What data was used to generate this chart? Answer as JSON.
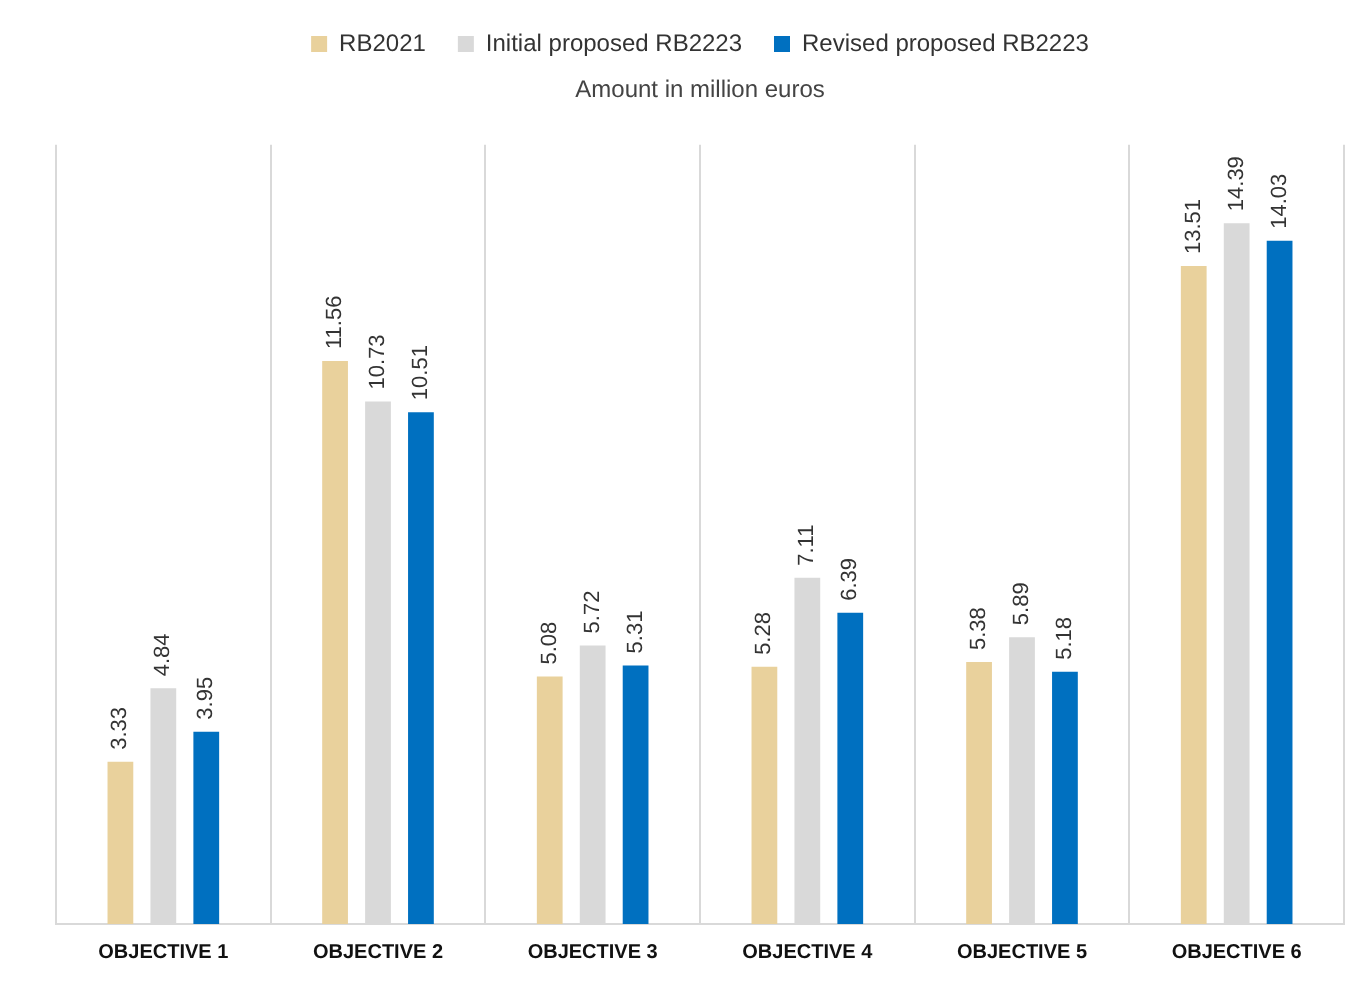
{
  "chart_data": {
    "type": "bar",
    "subtitle": "Amount in million euros",
    "categories": [
      "OBJECTIVE 1",
      "OBJECTIVE 2",
      "OBJECTIVE 3",
      "OBJECTIVE 4",
      "OBJECTIVE 5",
      "OBJECTIVE 6"
    ],
    "series": [
      {
        "name": "RB2021",
        "color": "#e9d19c",
        "values": [
          3.33,
          11.56,
          5.08,
          5.28,
          5.38,
          13.51
        ]
      },
      {
        "name": "Initial proposed RB2223",
        "color": "#d9d9d9",
        "values": [
          4.84,
          10.73,
          5.72,
          7.11,
          5.89,
          14.39
        ]
      },
      {
        "name": "Revised proposed RB2223",
        "color": "#0070c0",
        "values": [
          3.95,
          10.51,
          5.31,
          6.39,
          5.18,
          14.03
        ]
      }
    ],
    "data_labels": true,
    "grid": "x",
    "legend": "top"
  }
}
